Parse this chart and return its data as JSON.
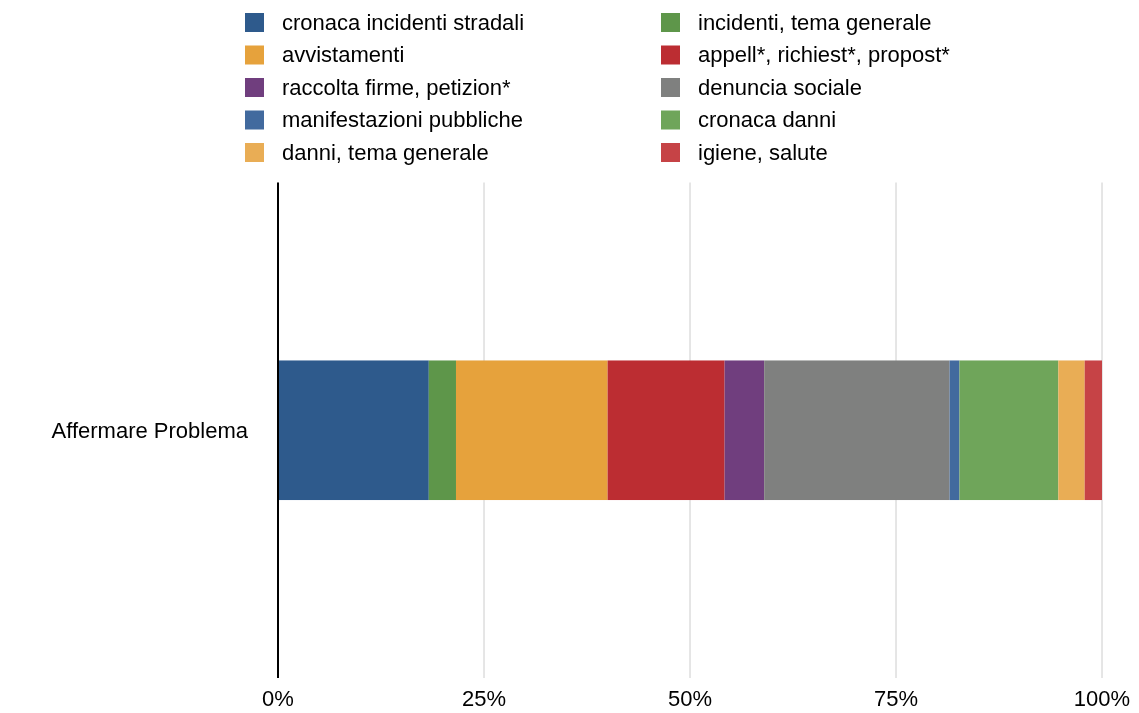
{
  "chart_data": {
    "type": "bar",
    "orientation": "horizontal",
    "stacked": true,
    "categories": [
      "Affermare Problema"
    ],
    "series": [
      {
        "name": "cronaca incidenti stradali",
        "color": "#2e5a8c",
        "values": [
          18.3
        ]
      },
      {
        "name": "incidenti, tema generale",
        "color": "#5e964a",
        "values": [
          3.3
        ]
      },
      {
        "name": "avvistamenti",
        "color": "#e6a23c",
        "values": [
          18.4
        ]
      },
      {
        "name": "appell*, richiest*, propost*",
        "color": "#bc2d32",
        "values": [
          14.2
        ]
      },
      {
        "name": "raccolta firme, petizion*",
        "color": "#703e7e",
        "values": [
          4.8
        ]
      },
      {
        "name": "denuncia sociale",
        "color": "#7f807f",
        "values": [
          22.5
        ]
      },
      {
        "name": "manifestazioni pubbliche",
        "color": "#426a9e",
        "values": [
          1.2
        ]
      },
      {
        "name": "cronaca danni",
        "color": "#6fa55a",
        "values": [
          12.0
        ]
      },
      {
        "name": "danni, tema generale",
        "color": "#e9ad55",
        "values": [
          3.2
        ]
      },
      {
        "name": "igiene, salute",
        "color": "#c64346",
        "values": [
          2.1
        ]
      }
    ],
    "xlim": [
      0,
      100
    ],
    "xticks": [
      {
        "value": 0,
        "label": "0%"
      },
      {
        "value": 25,
        "label": "25%"
      },
      {
        "value": 50,
        "label": "50%"
      },
      {
        "value": 75,
        "label": "75%"
      },
      {
        "value": 100,
        "label": "100%"
      }
    ],
    "grid": "x",
    "legend": "top"
  }
}
